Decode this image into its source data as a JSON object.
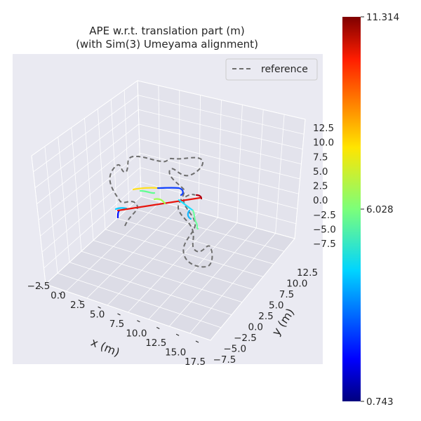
{
  "chart_data": {
    "type": "line",
    "projection": "3d",
    "title": "APE w.r.t. translation part (m)",
    "subtitle": "(with Sim(3) Umeyama alignment)",
    "xlabel": "x (m)",
    "ylabel": "y (m)",
    "zlabel": "",
    "x_ticks": [
      "−2.5",
      "0.0",
      "2.5",
      "5.0",
      "7.5",
      "10.0",
      "12.5",
      "15.0",
      "17.5"
    ],
    "y_ticks": [
      "−7.5",
      "−5.0",
      "−2.5",
      "0.0",
      "2.5",
      "5.0",
      "7.5",
      "10.0",
      "12.5"
    ],
    "z_ticks": [
      "12.5",
      "10.0",
      "7.5",
      "5.0",
      "2.5",
      "0.0",
      "−2.5",
      "−5.0",
      "−7.5"
    ],
    "grid": true,
    "legend": {
      "position": "top-right",
      "entries": [
        "reference"
      ]
    },
    "series": [
      {
        "name": "reference",
        "style": "dashed",
        "color": "#6e6e6e"
      },
      {
        "style": "solid",
        "colormap": "jet"
      }
    ],
    "colorbar": {
      "colormap": "jet",
      "min": 0.743,
      "max": 11.314,
      "ticks": [
        "11.314",
        "6.028",
        "0.743"
      ]
    }
  }
}
